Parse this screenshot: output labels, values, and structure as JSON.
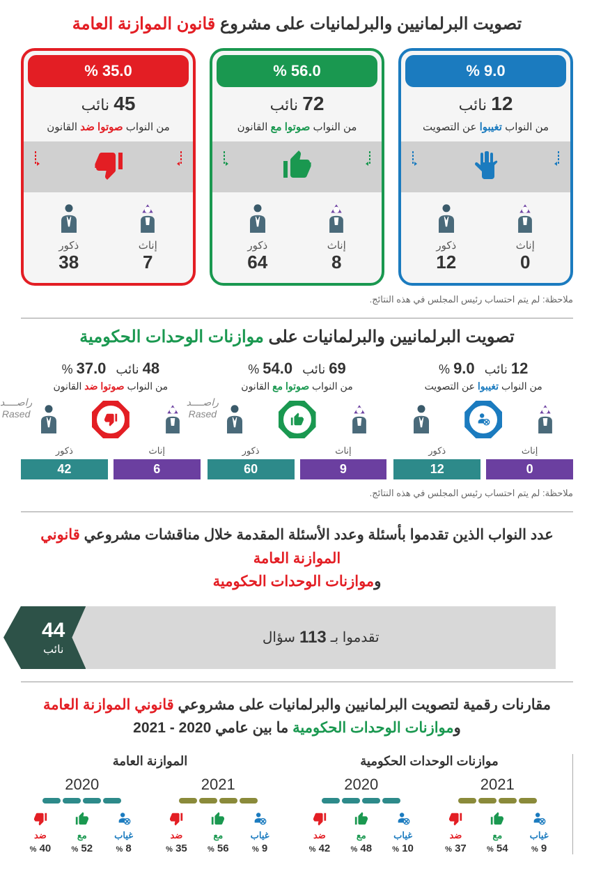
{
  "colors": {
    "red": "#e31e24",
    "green": "#1a9850",
    "blue": "#1b7bbf",
    "teal": "#2d8a8a",
    "olive": "#8a8a3a",
    "purple": "#6b3fa0",
    "gray_bg": "#d0d0d0",
    "dark_teal": "#2d5248"
  },
  "section1": {
    "title_pre": "تصويت البرلمانيين والبرلمانيات على مشروع ",
    "title_hl": "قانون الموازنة العامة",
    "cards": [
      {
        "pct": "35.0 %",
        "count": "45",
        "count_unit": "نائب",
        "sub_pre": "من النواب ",
        "sub_hl": "صوتوا ضد",
        "sub_post": " القانون",
        "color": "#e31e24",
        "icon": "thumb-down",
        "male_label": "ذكور",
        "male": "38",
        "female_label": "إناث",
        "female": "7"
      },
      {
        "pct": "56.0 %",
        "count": "72",
        "count_unit": "نائب",
        "sub_pre": "من النواب ",
        "sub_hl": "صوتوا مع",
        "sub_post": " القانون",
        "color": "#1a9850",
        "icon": "thumb-up",
        "male_label": "ذكور",
        "male": "64",
        "female_label": "إناث",
        "female": "8"
      },
      {
        "pct": "9.0 %",
        "count": "12",
        "count_unit": "نائب",
        "sub_pre": "من النواب ",
        "sub_hl": "تغيبوا",
        "sub_post": " عن التصويت",
        "color": "#1b7bbf",
        "icon": "hand",
        "male_label": "ذكور",
        "male": "12",
        "female_label": "إناث",
        "female": "0"
      }
    ],
    "note": "ملاحظة: لم يتم احتساب رئيس المجلس في هذه النتائج."
  },
  "section2": {
    "title_pre": "تصويت البرلمانيين والبرلمانيات على ",
    "title_hl": "موازنات الوحدات الحكومية",
    "rased": "راصــــد",
    "rased_en": "Rased",
    "groups": [
      {
        "pct": "37.0",
        "count": "48",
        "count_unit": "نائب",
        "sub_pre": "من النواب ",
        "sub_hl": "صوتوا ضد",
        "sub_post": " القانون",
        "badge_color": "#e31e24",
        "icon": "thumb-down",
        "male_label": "ذكور",
        "male": "42",
        "male_bg": "#2d8a8a",
        "female_label": "إناث",
        "female": "6",
        "female_bg": "#6b3fa0"
      },
      {
        "pct": "54.0",
        "count": "69",
        "count_unit": "نائب",
        "sub_pre": "من النواب ",
        "sub_hl": "صوتوا مع",
        "sub_post": " القانون",
        "badge_color": "#1a9850",
        "icon": "thumb-up",
        "male_label": "ذكور",
        "male": "60",
        "male_bg": "#2d8a8a",
        "female_label": "إناث",
        "female": "9",
        "female_bg": "#6b3fa0"
      },
      {
        "pct": "9.0",
        "count": "12",
        "count_unit": "نائب",
        "sub_pre": "من النواب ",
        "sub_hl": "تغيبوا",
        "sub_post": " عن التصويت",
        "badge_color": "#1b7bbf",
        "icon": "absent",
        "male_label": "ذكور",
        "male": "12",
        "male_bg": "#2d8a8a",
        "female_label": "إناث",
        "female": "0",
        "female_bg": "#6b3fa0"
      }
    ],
    "note": "ملاحظة: لم يتم احتساب رئيس المجلس في هذه النتائج."
  },
  "section3": {
    "title_p1": "عدد النواب الذين ",
    "title_b1": "تقدموا بأسئلة",
    "title_p2": " وعدد الأسئلة المقدمة خلال مناقشات مشروعي ",
    "title_b2": "قانوني الموازنة العامة",
    "title_p3": " و",
    "title_b3": "موازنات الوحدات الحكومية",
    "deputies": "44",
    "deputies_unit": "نائب",
    "questions_pre": "تقدموا بـ ",
    "questions": "113",
    "questions_post": " سؤال"
  },
  "section4": {
    "title_p1": "مقارنات رقمية لتصويت البرلمانيين والبرلمانيات على مشروعي ",
    "title_b1": "قانوني الموازنة العامة",
    "title_p2": " و",
    "title_b2": "موازنات الوحدات الحكومية",
    "title_p3": " ما بين عامي ",
    "title_b3": "2020 - 2021",
    "halves": [
      {
        "title": "الموازنة العامة",
        "years": [
          {
            "year": "2020",
            "pill_color": "#2d8a8a",
            "cells": [
              {
                "label": "ضد",
                "val": "40",
                "color": "#e31e24",
                "icon": "thumb-down"
              },
              {
                "label": "مع",
                "val": "52",
                "color": "#1a9850",
                "icon": "thumb-up"
              },
              {
                "label": "غياب",
                "val": "8",
                "color": "#1b7bbf",
                "icon": "absent"
              }
            ]
          },
          {
            "year": "2021",
            "pill_color": "#8a8a3a",
            "cells": [
              {
                "label": "ضد",
                "val": "35",
                "color": "#e31e24",
                "icon": "thumb-down"
              },
              {
                "label": "مع",
                "val": "56",
                "color": "#1a9850",
                "icon": "thumb-up"
              },
              {
                "label": "غياب",
                "val": "9",
                "color": "#1b7bbf",
                "icon": "absent"
              }
            ]
          }
        ]
      },
      {
        "title": "موازنات الوحدات الحكومية",
        "years": [
          {
            "year": "2020",
            "pill_color": "#2d8a8a",
            "cells": [
              {
                "label": "ضد",
                "val": "42",
                "color": "#e31e24",
                "icon": "thumb-down"
              },
              {
                "label": "مع",
                "val": "48",
                "color": "#1a9850",
                "icon": "thumb-up"
              },
              {
                "label": "غياب",
                "val": "10",
                "color": "#1b7bbf",
                "icon": "absent"
              }
            ]
          },
          {
            "year": "2021",
            "pill_color": "#8a8a3a",
            "cells": [
              {
                "label": "ضد",
                "val": "37",
                "color": "#e31e24",
                "icon": "thumb-down"
              },
              {
                "label": "مع",
                "val": "54",
                "color": "#1a9850",
                "icon": "thumb-up"
              },
              {
                "label": "غياب",
                "val": "9",
                "color": "#1b7bbf",
                "icon": "absent"
              }
            ]
          }
        ]
      }
    ]
  }
}
